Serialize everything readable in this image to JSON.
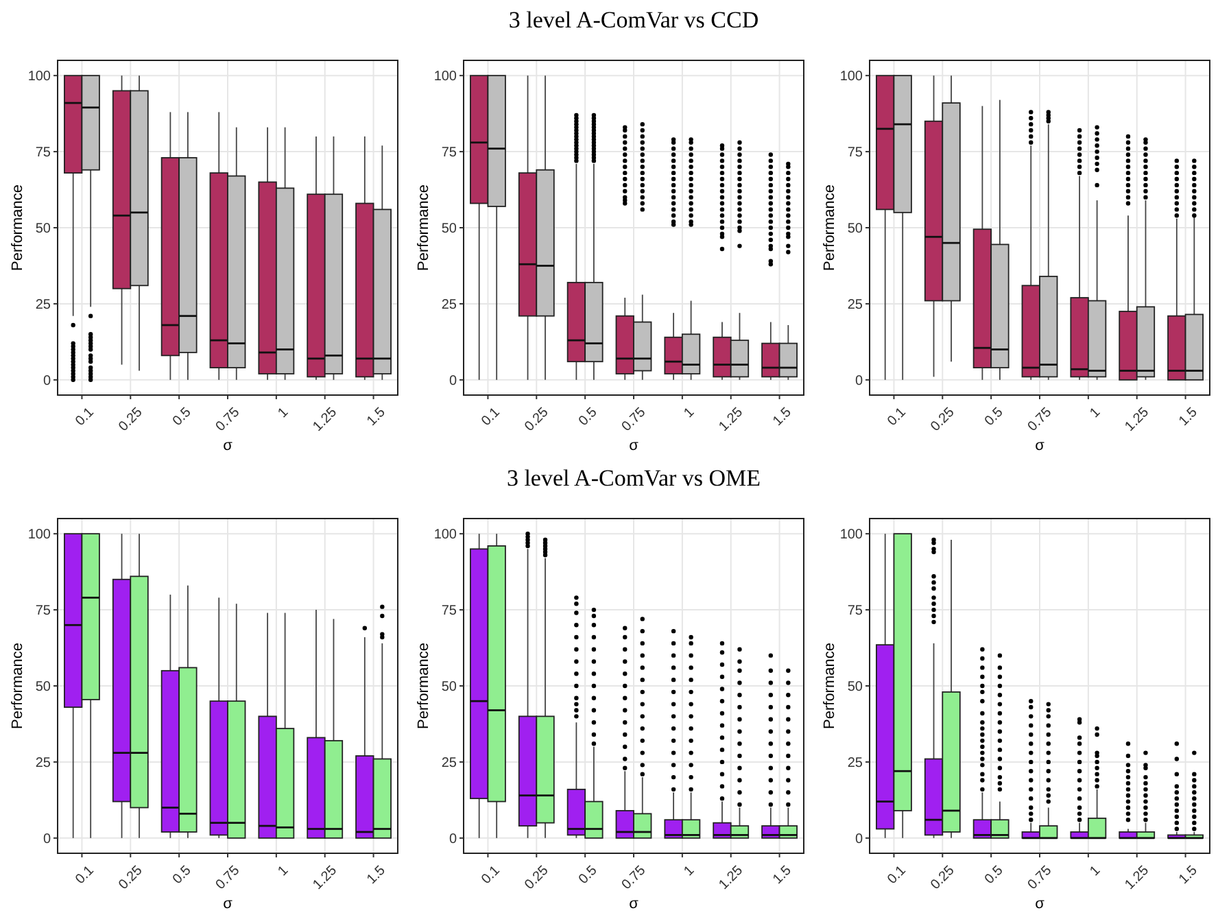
{
  "chart_data": [
    {
      "type": "box",
      "ylabel": "Performance",
      "xlabel": "σ",
      "categories": [
        "0.1",
        "0.25",
        "0.5",
        "0.75",
        "1",
        "1.25",
        "1.5"
      ],
      "ylim": [
        -5,
        105
      ],
      "yticks": [
        0,
        25,
        50,
        75,
        100
      ],
      "grid": true,
      "series": [
        {
          "color": "#b03060",
          "boxes": [
            {
              "low": 21,
              "q1": 68,
              "median": 91,
              "q3": 100,
              "high": 100,
              "outliers": [
                0,
                1,
                2,
                3,
                4,
                5,
                6,
                7,
                8,
                9,
                10,
                11,
                12,
                18
              ]
            },
            {
              "low": 5,
              "q1": 30,
              "median": 54,
              "q3": 95,
              "high": 100
            },
            {
              "low": 0,
              "q1": 8,
              "median": 18,
              "q3": 73,
              "high": 88
            },
            {
              "low": 0,
              "q1": 4,
              "median": 13,
              "q3": 68,
              "high": 88
            },
            {
              "low": 0,
              "q1": 2,
              "median": 9,
              "q3": 65,
              "high": 83
            },
            {
              "low": 0,
              "q1": 1,
              "median": 7,
              "q3": 61,
              "high": 80
            },
            {
              "low": 0,
              "q1": 1,
              "median": 7,
              "q3": 58,
              "high": 80
            }
          ]
        },
        {
          "color": "#bebebe",
          "boxes": [
            {
              "low": 24,
              "q1": 69,
              "median": 89.5,
              "q3": 100,
              "high": 100,
              "outliers": [
                0,
                1,
                2,
                3,
                4,
                6,
                7,
                8,
                10,
                11,
                12,
                13,
                14,
                15,
                21
              ]
            },
            {
              "low": 3,
              "q1": 31,
              "median": 55,
              "q3": 95,
              "high": 100
            },
            {
              "low": 0,
              "q1": 9,
              "median": 21,
              "q3": 73,
              "high": 88
            },
            {
              "low": 0,
              "q1": 4,
              "median": 12,
              "q3": 67,
              "high": 83
            },
            {
              "low": 0,
              "q1": 2,
              "median": 10,
              "q3": 63,
              "high": 83
            },
            {
              "low": 0,
              "q1": 2,
              "median": 8,
              "q3": 61,
              "high": 80
            },
            {
              "low": 0,
              "q1": 2,
              "median": 7,
              "q3": 56,
              "high": 77
            }
          ]
        }
      ]
    },
    {
      "type": "box",
      "title": "3 level A-ComVar vs CCD",
      "ylabel": "Performance",
      "xlabel": "σ",
      "categories": [
        "0.1",
        "0.25",
        "0.5",
        "0.75",
        "1",
        "1.25",
        "1.5"
      ],
      "ylim": [
        -5,
        105
      ],
      "yticks": [
        0,
        25,
        50,
        75,
        100
      ],
      "grid": true,
      "series": [
        {
          "color": "#b03060",
          "boxes": [
            {
              "low": 0,
              "q1": 58,
              "median": 78,
              "q3": 100,
              "high": 100
            },
            {
              "low": 0,
              "q1": 21,
              "median": 38,
              "q3": 68,
              "high": 100
            },
            {
              "low": 0,
              "q1": 6,
              "median": 13,
              "q3": 32,
              "high": 71,
              "outliers": [
                72,
                73,
                74,
                75,
                76,
                77,
                78,
                79,
                80,
                81,
                82,
                83,
                84,
                85,
                86,
                87
              ]
            },
            {
              "low": 0,
              "q1": 2,
              "median": 7,
              "q3": 21,
              "high": 27,
              "outliers": [
                58,
                59,
                60,
                62,
                64,
                66,
                68,
                70,
                72,
                74,
                76,
                78,
                80,
                82,
                83
              ]
            },
            {
              "low": 0,
              "q1": 2,
              "median": 6,
              "q3": 14,
              "high": 22,
              "outliers": [
                51,
                52,
                54,
                56,
                58,
                60,
                62,
                64,
                66,
                68,
                70,
                72,
                74,
                76,
                78,
                79
              ]
            },
            {
              "low": 0,
              "q1": 1,
              "median": 5,
              "q3": 14,
              "high": 19,
              "outliers": [
                43,
                47,
                48,
                50,
                52,
                54,
                56,
                58,
                60,
                62,
                64,
                66,
                68,
                70,
                72,
                74,
                76,
                77
              ]
            },
            {
              "low": 0,
              "q1": 1,
              "median": 4,
              "q3": 12,
              "high": 19,
              "outliers": [
                38,
                39,
                43,
                44,
                46,
                48,
                50,
                52,
                54,
                56,
                58,
                60,
                62,
                64,
                66,
                68,
                70,
                72,
                74
              ]
            }
          ]
        },
        {
          "color": "#bebebe",
          "boxes": [
            {
              "low": 0,
              "q1": 57,
              "median": 76,
              "q3": 100,
              "high": 100
            },
            {
              "low": 0,
              "q1": 21,
              "median": 37.5,
              "q3": 69,
              "high": 100
            },
            {
              "low": 0,
              "q1": 6,
              "median": 12,
              "q3": 32,
              "high": 71,
              "outliers": [
                72,
                73,
                74,
                75,
                76,
                77,
                78,
                79,
                80,
                81,
                82,
                83,
                84,
                85,
                86,
                87
              ]
            },
            {
              "low": 0,
              "q1": 3,
              "median": 7,
              "q3": 19,
              "high": 28,
              "outliers": [
                56,
                58,
                60,
                62,
                64,
                66,
                68,
                70,
                72,
                74,
                76,
                78,
                80,
                82,
                84
              ]
            },
            {
              "low": 0,
              "q1": 2,
              "median": 5,
              "q3": 15,
              "high": 26,
              "outliers": [
                51,
                52,
                54,
                56,
                58,
                60,
                62,
                64,
                66,
                68,
                70,
                72,
                74,
                76,
                78,
                79
              ]
            },
            {
              "low": 0,
              "q1": 1,
              "median": 5,
              "q3": 13,
              "high": 22,
              "outliers": [
                44,
                49,
                50,
                52,
                54,
                56,
                58,
                60,
                62,
                64,
                66,
                68,
                70,
                72,
                74,
                76,
                78
              ]
            },
            {
              "low": 0,
              "q1": 1,
              "median": 4,
              "q3": 12,
              "high": 18,
              "outliers": [
                42,
                44,
                47,
                48,
                50,
                52,
                54,
                56,
                58,
                60,
                62,
                64,
                66,
                68,
                70,
                71
              ]
            }
          ]
        }
      ]
    },
    {
      "type": "box",
      "ylabel": "Performance",
      "xlabel": "σ",
      "categories": [
        "0.1",
        "0.25",
        "0.5",
        "0.75",
        "1",
        "1.25",
        "1.5"
      ],
      "ylim": [
        -5,
        105
      ],
      "yticks": [
        0,
        25,
        50,
        75,
        100
      ],
      "grid": true,
      "series": [
        {
          "color": "#b03060",
          "boxes": [
            {
              "low": 0,
              "q1": 56,
              "median": 82.5,
              "q3": 100,
              "high": 100
            },
            {
              "low": 1,
              "q1": 26,
              "median": 47,
              "q3": 85,
              "high": 100
            },
            {
              "low": 0,
              "q1": 4,
              "median": 10.5,
              "q3": 49.5,
              "high": 90
            },
            {
              "low": 0,
              "q1": 1,
              "median": 4,
              "q3": 31,
              "high": 77,
              "outliers": [
                78,
                80,
                82,
                84,
                86,
                88
              ]
            },
            {
              "low": 0,
              "q1": 1,
              "median": 3.5,
              "q3": 27,
              "high": 67,
              "outliers": [
                68,
                70,
                72,
                74,
                76,
                78,
                80,
                82
              ]
            },
            {
              "low": 0,
              "q1": 0,
              "median": 3,
              "q3": 22.5,
              "high": 54,
              "outliers": [
                58,
                60,
                62,
                64,
                66,
                68,
                70,
                72,
                74,
                76,
                78,
                80
              ]
            },
            {
              "low": 0,
              "q1": 0,
              "median": 3,
              "q3": 21,
              "high": 53,
              "outliers": [
                54,
                56,
                58,
                60,
                62,
                64,
                66,
                68,
                70,
                72
              ]
            }
          ]
        },
        {
          "color": "#bebebe",
          "boxes": [
            {
              "low": 0,
              "q1": 55,
              "median": 84,
              "q3": 100,
              "high": 100
            },
            {
              "low": 6,
              "q1": 26,
              "median": 45,
              "q3": 91,
              "high": 100
            },
            {
              "low": 0,
              "q1": 4,
              "median": 10,
              "q3": 44.5,
              "high": 92
            },
            {
              "low": 0,
              "q1": 1,
              "median": 5,
              "q3": 34,
              "high": 84,
              "outliers": [
                85,
                86,
                87,
                88
              ]
            },
            {
              "low": 0,
              "q1": 1,
              "median": 3,
              "q3": 26,
              "high": 59,
              "outliers": [
                64,
                69,
                71,
                73,
                75,
                77,
                79,
                81,
                83
              ]
            },
            {
              "low": 0,
              "q1": 1,
              "median": 3,
              "q3": 24,
              "high": 59,
              "outliers": [
                60,
                62,
                64,
                66,
                68,
                70,
                72,
                74,
                76,
                78,
                79
              ]
            },
            {
              "low": 0,
              "q1": 0,
              "median": 3,
              "q3": 21.5,
              "high": 54,
              "outliers": [
                54,
                56,
                58,
                60,
                62,
                64,
                66,
                68,
                70,
                72
              ]
            }
          ]
        }
      ]
    },
    {
      "type": "box",
      "ylabel": "Performance",
      "xlabel": "σ",
      "categories": [
        "0.1",
        "0.25",
        "0.5",
        "0.75",
        "1",
        "1.25",
        "1.5"
      ],
      "ylim": [
        -5,
        105
      ],
      "yticks": [
        0,
        25,
        50,
        75,
        100
      ],
      "grid": true,
      "series": [
        {
          "color": "#a020f0",
          "boxes": [
            {
              "low": 0,
              "q1": 43,
              "median": 70,
              "q3": 100,
              "high": 100
            },
            {
              "low": 0,
              "q1": 12,
              "median": 28,
              "q3": 85,
              "high": 100
            },
            {
              "low": 0,
              "q1": 2,
              "median": 10,
              "q3": 55,
              "high": 80
            },
            {
              "low": 0,
              "q1": 1,
              "median": 5,
              "q3": 45,
              "high": 79
            },
            {
              "low": 0,
              "q1": 0,
              "median": 4,
              "q3": 40,
              "high": 74
            },
            {
              "low": 0,
              "q1": 0,
              "median": 3,
              "q3": 33,
              "high": 75
            },
            {
              "low": 0,
              "q1": 0,
              "median": 2,
              "q3": 27,
              "high": 66,
              "outliers": [
                69
              ]
            }
          ]
        },
        {
          "color": "#90ee90",
          "boxes": [
            {
              "low": 0,
              "q1": 45.5,
              "median": 79,
              "q3": 100,
              "high": 100
            },
            {
              "low": 0,
              "q1": 10,
              "median": 28,
              "q3": 86,
              "high": 100
            },
            {
              "low": 0,
              "q1": 2,
              "median": 8,
              "q3": 56,
              "high": 83
            },
            {
              "low": 0,
              "q1": 0,
              "median": 5,
              "q3": 45,
              "high": 77
            },
            {
              "low": 0,
              "q1": 0,
              "median": 3.5,
              "q3": 36,
              "high": 74
            },
            {
              "low": 0,
              "q1": 0,
              "median": 3,
              "q3": 32,
              "high": 72
            },
            {
              "low": 0,
              "q1": 0,
              "median": 3,
              "q3": 26,
              "high": 64,
              "outliers": [
                66,
                67,
                73,
                76
              ]
            }
          ]
        }
      ]
    },
    {
      "type": "box",
      "title": "3 level A-ComVar vs OME",
      "ylabel": "Performance",
      "xlabel": "σ",
      "categories": [
        "0.1",
        "0.25",
        "0.5",
        "0.75",
        "1",
        "1.25",
        "1.5"
      ],
      "ylim": [
        -5,
        105
      ],
      "yticks": [
        0,
        25,
        50,
        75,
        100
      ],
      "grid": true,
      "series": [
        {
          "color": "#a020f0",
          "boxes": [
            {
              "low": 0,
              "q1": 13,
              "median": 45,
              "q3": 95,
              "high": 100
            },
            {
              "low": 0,
              "q1": 4,
              "median": 14,
              "q3": 40,
              "high": 95,
              "outliers": [
                96,
                97,
                98,
                99,
                100
              ]
            },
            {
              "low": 0,
              "q1": 1,
              "median": 3,
              "q3": 16,
              "high": 38,
              "outliers": [
                40,
                42,
                44,
                46,
                50,
                54,
                58,
                62,
                66,
                70,
                74,
                77,
                79
              ]
            },
            {
              "low": 0,
              "q1": 0,
              "median": 2,
              "q3": 9,
              "high": 22,
              "outliers": [
                23,
                26,
                30,
                34,
                38,
                42,
                46,
                50,
                54,
                58,
                62,
                66,
                69
              ]
            },
            {
              "low": 0,
              "q1": 0,
              "median": 1,
              "q3": 6,
              "high": 15,
              "outliers": [
                16,
                20,
                24,
                28,
                32,
                36,
                40,
                44,
                48,
                52,
                56,
                60,
                64,
                68
              ]
            },
            {
              "low": 0,
              "q1": 0,
              "median": 1,
              "q3": 5,
              "high": 12,
              "outliers": [
                13,
                17,
                21,
                25,
                29,
                33,
                37,
                41,
                45,
                49,
                53,
                57,
                61,
                64
              ]
            },
            {
              "low": 0,
              "q1": 0,
              "median": 1,
              "q3": 4,
              "high": 10,
              "outliers": [
                11,
                15,
                19,
                23,
                27,
                31,
                35,
                39,
                43,
                47,
                51,
                55,
                60
              ]
            }
          ]
        },
        {
          "color": "#90ee90",
          "boxes": [
            {
              "low": 0,
              "q1": 12,
              "median": 42,
              "q3": 96,
              "high": 100
            },
            {
              "low": 0,
              "q1": 5,
              "median": 14,
              "q3": 40,
              "high": 92,
              "outliers": [
                93,
                94,
                95,
                96,
                97,
                98
              ]
            },
            {
              "low": 0,
              "q1": 0,
              "median": 3,
              "q3": 12,
              "high": 30,
              "outliers": [
                31,
                34,
                38,
                42,
                46,
                50,
                54,
                58,
                62,
                66,
                70,
                73,
                75
              ]
            },
            {
              "low": 0,
              "q1": 0,
              "median": 2,
              "q3": 8,
              "high": 20,
              "outliers": [
                21,
                24,
                28,
                32,
                36,
                40,
                44,
                48,
                52,
                56,
                60,
                64,
                68,
                72
              ]
            },
            {
              "low": 0,
              "q1": 0,
              "median": 1,
              "q3": 6,
              "high": 15,
              "outliers": [
                16,
                20,
                24,
                28,
                32,
                36,
                40,
                44,
                48,
                52,
                56,
                60,
                64,
                66
              ]
            },
            {
              "low": 0,
              "q1": 0,
              "median": 1,
              "q3": 4,
              "high": 10,
              "outliers": [
                11,
                15,
                19,
                23,
                27,
                31,
                35,
                39,
                43,
                47,
                51,
                55,
                58,
                62
              ]
            },
            {
              "low": 0,
              "q1": 0,
              "median": 1,
              "q3": 4,
              "high": 10,
              "outliers": [
                11,
                15,
                19,
                23,
                27,
                31,
                35,
                39,
                43,
                47,
                51,
                55
              ]
            }
          ]
        }
      ]
    },
    {
      "type": "box",
      "ylabel": "Performance",
      "xlabel": "σ",
      "categories": [
        "0.1",
        "0.25",
        "0.5",
        "0.75",
        "1",
        "1.25",
        "1.5"
      ],
      "ylim": [
        -5,
        105
      ],
      "yticks": [
        0,
        25,
        50,
        75,
        100
      ],
      "grid": true,
      "series": [
        {
          "color": "#a020f0",
          "boxes": [
            {
              "low": 0,
              "q1": 3,
              "median": 12,
              "q3": 63.5,
              "high": 100
            },
            {
              "low": 0,
              "q1": 1,
              "median": 6,
              "q3": 26,
              "high": 64,
              "outliers": [
                71,
                73,
                75,
                77,
                79,
                82,
                84,
                86,
                94,
                95,
                97,
                98
              ]
            },
            {
              "low": 0,
              "q1": 0,
              "median": 1,
              "q3": 6,
              "high": 15,
              "outliers": [
                16,
                19,
                21,
                24,
                26,
                28,
                30,
                32,
                34,
                36,
                38,
                41,
                45,
                48,
                50,
                53,
                56,
                59,
                62
              ]
            },
            {
              "low": 0,
              "q1": 0,
              "median": 0,
              "q3": 2,
              "high": 5,
              "outliers": [
                6,
                8,
                10,
                13,
                16,
                19,
                22,
                25,
                28,
                31,
                34,
                37,
                40,
                43,
                45
              ]
            },
            {
              "low": 0,
              "q1": 0,
              "median": 0,
              "q3": 2,
              "high": 5,
              "outliers": [
                6,
                8,
                10,
                13,
                16,
                19,
                22,
                25,
                28,
                31,
                33,
                38,
                39
              ]
            },
            {
              "low": 0,
              "q1": 0,
              "median": 0,
              "q3": 2,
              "high": 3,
              "outliers": [
                6,
                8,
                10,
                12,
                14,
                16,
                18,
                20,
                22,
                24,
                27,
                31
              ]
            },
            {
              "low": 0,
              "q1": 0,
              "median": 0,
              "q3": 1,
              "high": 2,
              "outliers": [
                3,
                5,
                7,
                9,
                11,
                13,
                15,
                17,
                21,
                26,
                31
              ]
            }
          ]
        },
        {
          "color": "#90ee90",
          "boxes": [
            {
              "low": 0,
              "q1": 9,
              "median": 22,
              "q3": 100,
              "high": 100
            },
            {
              "low": 0,
              "q1": 2,
              "median": 9,
              "q3": 48,
              "high": 98
            },
            {
              "low": 0,
              "q1": 0,
              "median": 1,
              "q3": 6,
              "high": 12,
              "outliers": [
                16,
                18,
                20,
                23,
                26,
                29,
                32,
                35,
                38,
                41,
                44,
                47,
                50,
                53,
                56,
                60
              ]
            },
            {
              "low": 0,
              "q1": 0,
              "median": 0,
              "q3": 4,
              "high": 10,
              "outliers": [
                12,
                14,
                16,
                19,
                22,
                25,
                28,
                31,
                34,
                37,
                40,
                42,
                44
              ]
            },
            {
              "low": 0,
              "q1": 0,
              "median": 0,
              "q3": 6.5,
              "high": 16,
              "outliers": [
                17,
                19,
                21,
                23,
                25,
                27,
                28,
                34,
                36
              ]
            },
            {
              "low": 0,
              "q1": 0,
              "median": 0,
              "q3": 2,
              "high": 5,
              "outliers": [
                6,
                8,
                10,
                12,
                14,
                16,
                18,
                20,
                23,
                24,
                28
              ]
            },
            {
              "low": 0,
              "q1": 0,
              "median": 0,
              "q3": 1,
              "high": 2,
              "outliers": [
                3,
                5,
                7,
                9,
                11,
                13,
                15,
                17,
                19,
                21,
                28
              ]
            }
          ]
        }
      ]
    }
  ]
}
